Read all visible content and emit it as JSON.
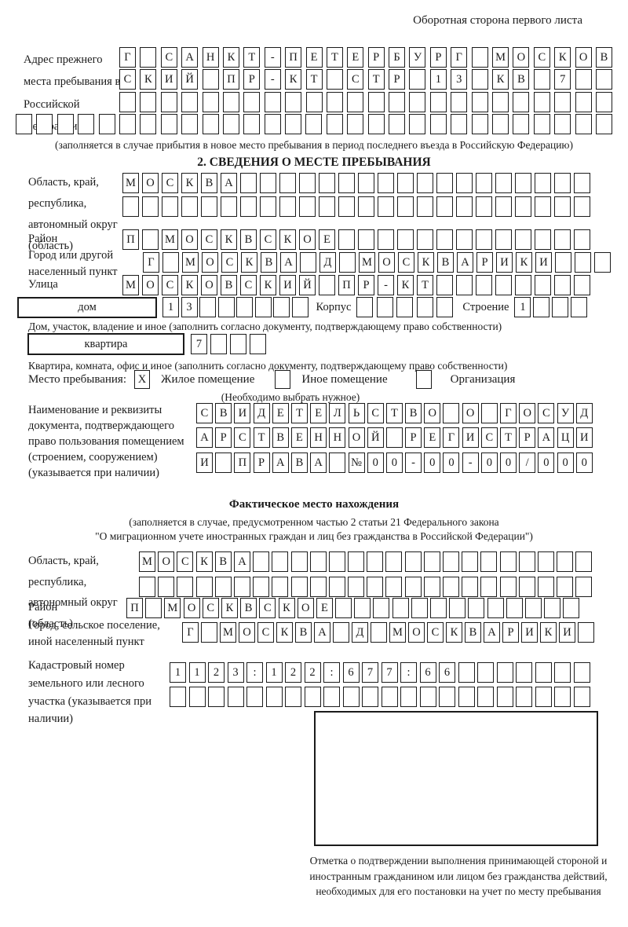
{
  "page": {
    "back_note": "Оборотная сторона первого листа"
  },
  "colors": {
    "ink": "#1b1b1b",
    "paper": "#ffffff"
  },
  "prev_address": {
    "label": "Адрес прежнего места пребывания в Российской Федерации",
    "rows": [
      {
        "n": 24,
        "v": "Г САНКТ-ПЕТЕРБУРГ МОСКОВ"
      },
      {
        "n": 24,
        "v": "СКИЙ ПР-КТ СТР 13 КВ 7"
      },
      {
        "n": 24,
        "v": ""
      },
      {
        "n": 29,
        "v": ""
      }
    ],
    "caption": "(заполняется в случае прибытия в новое место пребывания в период последнего въезда в Российскую Федерацию)"
  },
  "section2": {
    "title": "2. СВЕДЕНИЯ О МЕСТЕ ПРЕБЫВАНИЯ",
    "region": {
      "label": "Область, край, республика, автономный округ (область)",
      "rows": [
        {
          "n": 24,
          "v": "МОСКВА"
        },
        {
          "n": 24,
          "v": ""
        }
      ]
    },
    "district": {
      "label": "Район",
      "row": {
        "n": 24,
        "v": "П МОСКВСКОЕ"
      }
    },
    "city": {
      "label": "Город или другой населенный пункт",
      "row": {
        "n": 24,
        "v": "Г МОСКВА Д МОСКВАРИКИ"
      }
    },
    "street": {
      "label": "Улица",
      "row": {
        "n": 24,
        "v": "МОСКОВСКИЙ ПР-КТ"
      }
    },
    "house": {
      "box_label": "дом",
      "number": {
        "n": 8,
        "v": "13"
      },
      "korpus_label": "Корпус",
      "korpus": {
        "n": 5,
        "v": ""
      },
      "stroenie_label": "Строение",
      "stroenie": {
        "n": 4,
        "v": "1"
      }
    },
    "house_caption": "Дом, участок, владение и иное (заполнить согласно документу, подтверждающему право собственности)",
    "apartment": {
      "box_label": "квартира",
      "number": {
        "n": 4,
        "v": "7"
      }
    },
    "apartment_caption": "Квартира, комната, офис и иное (заполнить согласно документу, подтверждающему право собственности)",
    "stay": {
      "label": "Место пребывания:",
      "options": [
        {
          "label": "Жилое помещение",
          "mark": "X"
        },
        {
          "label": "Иное помещение",
          "mark": ""
        },
        {
          "label": "Организация",
          "mark": ""
        }
      ],
      "hint": "(Необходимо выбрать нужное)"
    },
    "document": {
      "label": "Наименование и реквизиты документа, подтверждающего право пользования помещением (строением, сооружением) (указывается при наличии)",
      "rows": [
        {
          "n": 21,
          "v": "СВИДЕТЕЛЬСТВО О ГОСУД"
        },
        {
          "n": 21,
          "v": "АРСТВЕННОЙ РЕГИСТРАЦИ"
        },
        {
          "n": 21,
          "v": "И ПРАВА №00-00-00/000"
        }
      ]
    }
  },
  "actual_location": {
    "title": "Фактическое место нахождения",
    "caption_line1": "(заполняется в случае, предусмотренном частью 2 статьи 21 Федерального закона",
    "caption_line2": "\"О миграционном учете иностранных граждан и лиц без гражданства в Российской Федерации\")",
    "region": {
      "label": "Область, край, республика, автономный округ (область)",
      "rows": [
        {
          "n": 24,
          "v": "МОСКВА"
        },
        {
          "n": 24,
          "v": ""
        }
      ]
    },
    "district": {
      "label": "Район",
      "row": {
        "n": 24,
        "v": "П МОСКВСКОЕ"
      }
    },
    "city": {
      "label": "Город, сельское поселение, иной населенный пункт",
      "row": {
        "n": 22,
        "v": "Г МОСКВА Д МОСКВАРИКИ"
      }
    },
    "cadastral": {
      "label": "Кадастровый номер земельного или лесного участка (указывается при наличии)",
      "rows": [
        {
          "n": 22,
          "v": "1123:122:677:66"
        },
        {
          "n": 22,
          "v": ""
        }
      ]
    },
    "mark_caption": "Отметка о подтверждении выполнения принимающей стороной и иностранным гражданином или лицом без гражданства действий, необходимых для его постановки на учет по месту пребывания"
  }
}
